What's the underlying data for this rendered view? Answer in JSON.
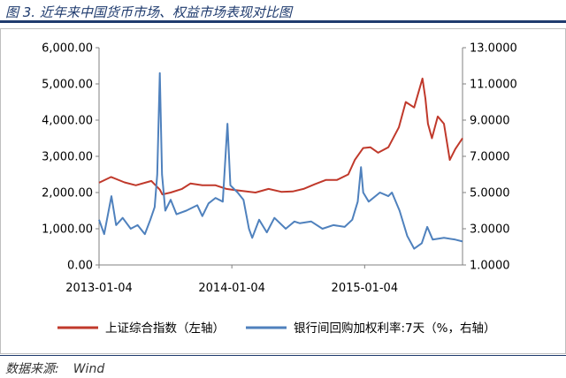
{
  "header": {
    "title": "图 3.  近年来中国货币市场、权益市场表现对比图"
  },
  "footer": {
    "source_label": "数据来源:",
    "source_value": "Wind"
  },
  "colors": {
    "series1": "#c0392b",
    "series2": "#4f81bd",
    "rule": "#1f3b6e"
  },
  "chart_data": {
    "type": "line",
    "title": "",
    "x_ticks": [
      "2013-01-04",
      "2014-01-04",
      "2015-01-04"
    ],
    "x_range": [
      "2013-01-04",
      "2015-09-30"
    ],
    "y_left": {
      "ticks": [
        "0.00",
        "1,000.00",
        "2,000.00",
        "3,000.00",
        "4,000.00",
        "5,000.00",
        "6,000.00"
      ],
      "range": [
        0,
        6000
      ]
    },
    "y_right": {
      "ticks": [
        "1.0000",
        "3.0000",
        "5.0000",
        "7.0000",
        "9.0000",
        "11.0000",
        "13.0000"
      ],
      "range": [
        1,
        13
      ]
    },
    "grid": false,
    "legend_position": "bottom",
    "series": [
      {
        "name": "上证综合指数（左轴）",
        "axis": "left",
        "points": [
          [
            "2013-01-04",
            2270
          ],
          [
            "2013-02-06",
            2430
          ],
          [
            "2013-03-15",
            2280
          ],
          [
            "2013-04-15",
            2200
          ],
          [
            "2013-05-28",
            2320
          ],
          [
            "2013-06-20",
            2080
          ],
          [
            "2013-06-27",
            1950
          ],
          [
            "2013-07-20",
            2000
          ],
          [
            "2013-08-20",
            2100
          ],
          [
            "2013-09-12",
            2250
          ],
          [
            "2013-10-15",
            2200
          ],
          [
            "2013-11-20",
            2200
          ],
          [
            "2013-12-20",
            2100
          ],
          [
            "2014-01-04",
            2080
          ],
          [
            "2014-03-10",
            2000
          ],
          [
            "2014-04-15",
            2100
          ],
          [
            "2014-05-20",
            2020
          ],
          [
            "2014-06-20",
            2030
          ],
          [
            "2014-07-20",
            2100
          ],
          [
            "2014-08-20",
            2230
          ],
          [
            "2014-09-20",
            2350
          ],
          [
            "2014-10-20",
            2350
          ],
          [
            "2014-11-20",
            2500
          ],
          [
            "2014-12-08",
            2900
          ],
          [
            "2014-12-31",
            3230
          ],
          [
            "2015-01-20",
            3250
          ],
          [
            "2015-02-10",
            3100
          ],
          [
            "2015-03-10",
            3250
          ],
          [
            "2015-04-08",
            3800
          ],
          [
            "2015-04-27",
            4500
          ],
          [
            "2015-05-20",
            4350
          ],
          [
            "2015-06-12",
            5150
          ],
          [
            "2015-06-20",
            4600
          ],
          [
            "2015-06-27",
            3900
          ],
          [
            "2015-07-08",
            3500
          ],
          [
            "2015-07-24",
            4100
          ],
          [
            "2015-08-10",
            3900
          ],
          [
            "2015-08-26",
            2900
          ],
          [
            "2015-09-10",
            3200
          ],
          [
            "2015-09-30",
            3500
          ]
        ]
      },
      {
        "name": "银行间回购加权利率:7天（%，右轴）",
        "axis": "right",
        "points": [
          [
            "2013-01-04",
            3.5
          ],
          [
            "2013-01-18",
            2.7
          ],
          [
            "2013-02-07",
            4.8
          ],
          [
            "2013-02-20",
            3.2
          ],
          [
            "2013-03-10",
            3.6
          ],
          [
            "2013-04-01",
            3.0
          ],
          [
            "2013-04-20",
            3.2
          ],
          [
            "2013-05-10",
            2.7
          ],
          [
            "2013-05-25",
            3.5
          ],
          [
            "2013-06-06",
            4.2
          ],
          [
            "2013-06-13",
            6.0
          ],
          [
            "2013-06-20",
            11.6
          ],
          [
            "2013-06-26",
            6.0
          ],
          [
            "2013-07-05",
            4.0
          ],
          [
            "2013-07-20",
            4.6
          ],
          [
            "2013-08-05",
            3.8
          ],
          [
            "2013-09-01",
            4.0
          ],
          [
            "2013-10-01",
            4.3
          ],
          [
            "2013-10-15",
            3.7
          ],
          [
            "2013-11-01",
            4.4
          ],
          [
            "2013-11-20",
            4.7
          ],
          [
            "2013-12-10",
            4.5
          ],
          [
            "2013-12-23",
            8.8
          ],
          [
            "2013-12-31",
            5.4
          ],
          [
            "2014-01-20",
            5.0
          ],
          [
            "2014-02-05",
            4.6
          ],
          [
            "2014-02-20",
            3.0
          ],
          [
            "2014-03-01",
            2.5
          ],
          [
            "2014-03-20",
            3.5
          ],
          [
            "2014-04-10",
            2.8
          ],
          [
            "2014-05-01",
            3.6
          ],
          [
            "2014-06-01",
            3.0
          ],
          [
            "2014-06-25",
            3.4
          ],
          [
            "2014-07-10",
            3.3
          ],
          [
            "2014-08-10",
            3.4
          ],
          [
            "2014-09-10",
            3.0
          ],
          [
            "2014-10-10",
            3.2
          ],
          [
            "2014-11-10",
            3.1
          ],
          [
            "2014-12-01",
            3.5
          ],
          [
            "2014-12-16",
            4.5
          ],
          [
            "2014-12-25",
            6.4
          ],
          [
            "2014-12-31",
            5.0
          ],
          [
            "2015-01-15",
            4.5
          ],
          [
            "2015-02-15",
            5.0
          ],
          [
            "2015-03-10",
            4.8
          ],
          [
            "2015-03-20",
            5.0
          ],
          [
            "2015-04-10",
            4.0
          ],
          [
            "2015-05-01",
            2.6
          ],
          [
            "2015-05-20",
            1.9
          ],
          [
            "2015-06-10",
            2.2
          ],
          [
            "2015-06-25",
            3.1
          ],
          [
            "2015-07-10",
            2.4
          ],
          [
            "2015-08-10",
            2.5
          ],
          [
            "2015-09-10",
            2.4
          ],
          [
            "2015-09-30",
            2.3
          ]
        ]
      }
    ]
  }
}
